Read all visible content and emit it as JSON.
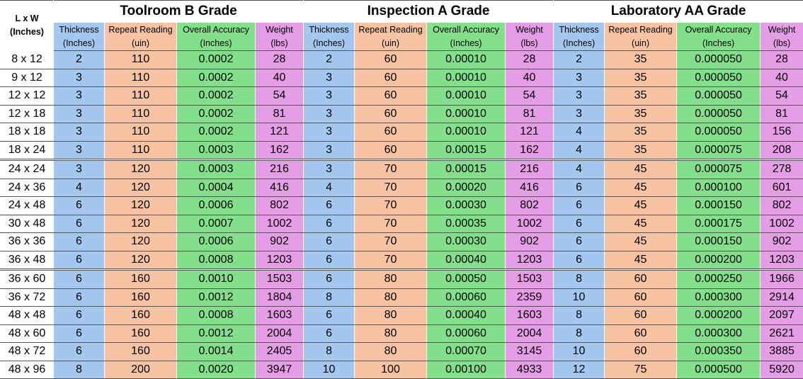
{
  "size_header": [
    "L x W",
    "(Inches)"
  ],
  "groups": [
    {
      "title": "Toolroom B Grade"
    },
    {
      "title": "Inspection A Grade"
    },
    {
      "title": "Laboratory AA Grade"
    }
  ],
  "columns": [
    [
      "Thickness",
      "(Inches)"
    ],
    [
      "Repeat Reading",
      "(uin)"
    ],
    [
      "Overall Accuracy",
      "(Inches)"
    ],
    [
      "Weight",
      "(lbs)"
    ]
  ],
  "rows": [
    [
      "8 x 12",
      "2",
      "110",
      "0.0002",
      "28",
      "2",
      "60",
      "0.00010",
      "28",
      "2",
      "35",
      "0.000050",
      "28"
    ],
    [
      "9 x 12",
      "3",
      "110",
      "0.0002",
      "40",
      "3",
      "60",
      "0.00010",
      "40",
      "3",
      "35",
      "0.000050",
      "40"
    ],
    [
      "12 x 12",
      "3",
      "110",
      "0.0002",
      "54",
      "3",
      "60",
      "0.00010",
      "54",
      "3",
      "35",
      "0.000050",
      "54"
    ],
    [
      "12 x 18",
      "3",
      "110",
      "0.0002",
      "81",
      "3",
      "60",
      "0.00010",
      "81",
      "3",
      "35",
      "0.000050",
      "81"
    ],
    [
      "18 x 18",
      "3",
      "110",
      "0.0002",
      "121",
      "3",
      "60",
      "0.00010",
      "121",
      "4",
      "35",
      "0.000050",
      "156"
    ],
    [
      "18 x 24",
      "3",
      "110",
      "0.0003",
      "162",
      "3",
      "60",
      "0.00015",
      "162",
      "4",
      "35",
      "0.000075",
      "208"
    ],
    [
      "24 x 24",
      "3",
      "120",
      "0.0003",
      "216",
      "3",
      "70",
      "0.00015",
      "216",
      "4",
      "45",
      "0.000075",
      "278"
    ],
    [
      "24 x 36",
      "4",
      "120",
      "0.0004",
      "416",
      "4",
      "70",
      "0.00020",
      "416",
      "6",
      "45",
      "0.000100",
      "601"
    ],
    [
      "24 x 48",
      "6",
      "120",
      "0.0006",
      "802",
      "6",
      "70",
      "0.00030",
      "802",
      "6",
      "45",
      "0.000150",
      "802"
    ],
    [
      "30 x 48",
      "6",
      "120",
      "0.0007",
      "1002",
      "6",
      "70",
      "0.00035",
      "1002",
      "6",
      "45",
      "0.000175",
      "1002"
    ],
    [
      "36 x 36",
      "6",
      "120",
      "0.0006",
      "902",
      "6",
      "70",
      "0.00030",
      "902",
      "6",
      "45",
      "0.000150",
      "902"
    ],
    [
      "36 x 48",
      "6",
      "120",
      "0.0008",
      "1203",
      "6",
      "70",
      "0.00040",
      "1203",
      "6",
      "45",
      "0.000200",
      "1203"
    ],
    [
      "36 x 60",
      "6",
      "160",
      "0.0010",
      "1503",
      "6",
      "80",
      "0.00050",
      "1503",
      "8",
      "60",
      "0.000250",
      "1966"
    ],
    [
      "36 x 72",
      "6",
      "160",
      "0.0012",
      "1804",
      "8",
      "80",
      "0.00060",
      "2359",
      "10",
      "60",
      "0.000300",
      "2914"
    ],
    [
      "48 x 48",
      "6",
      "160",
      "0.0008",
      "1603",
      "6",
      "80",
      "0.00040",
      "1603",
      "8",
      "60",
      "0.000200",
      "2097"
    ],
    [
      "48 x 60",
      "6",
      "160",
      "0.0012",
      "2004",
      "6",
      "80",
      "0.00060",
      "2004",
      "8",
      "60",
      "0.000300",
      "2621"
    ],
    [
      "48 x 72",
      "6",
      "160",
      "0.0014",
      "2405",
      "8",
      "80",
      "0.00070",
      "3145",
      "10",
      "60",
      "0.000350",
      "3885"
    ],
    [
      "48 x 96",
      "8",
      "200",
      "0.0020",
      "3947",
      "10",
      "100",
      "0.00100",
      "4933",
      "12",
      "75",
      "0.000500",
      "5920"
    ]
  ],
  "column_colors": {
    "thickness": "#a4c7ef",
    "repeat_reading": "#f7c3a2",
    "overall_accuracy": "#82e08a",
    "weight": "#e59ee6"
  }
}
